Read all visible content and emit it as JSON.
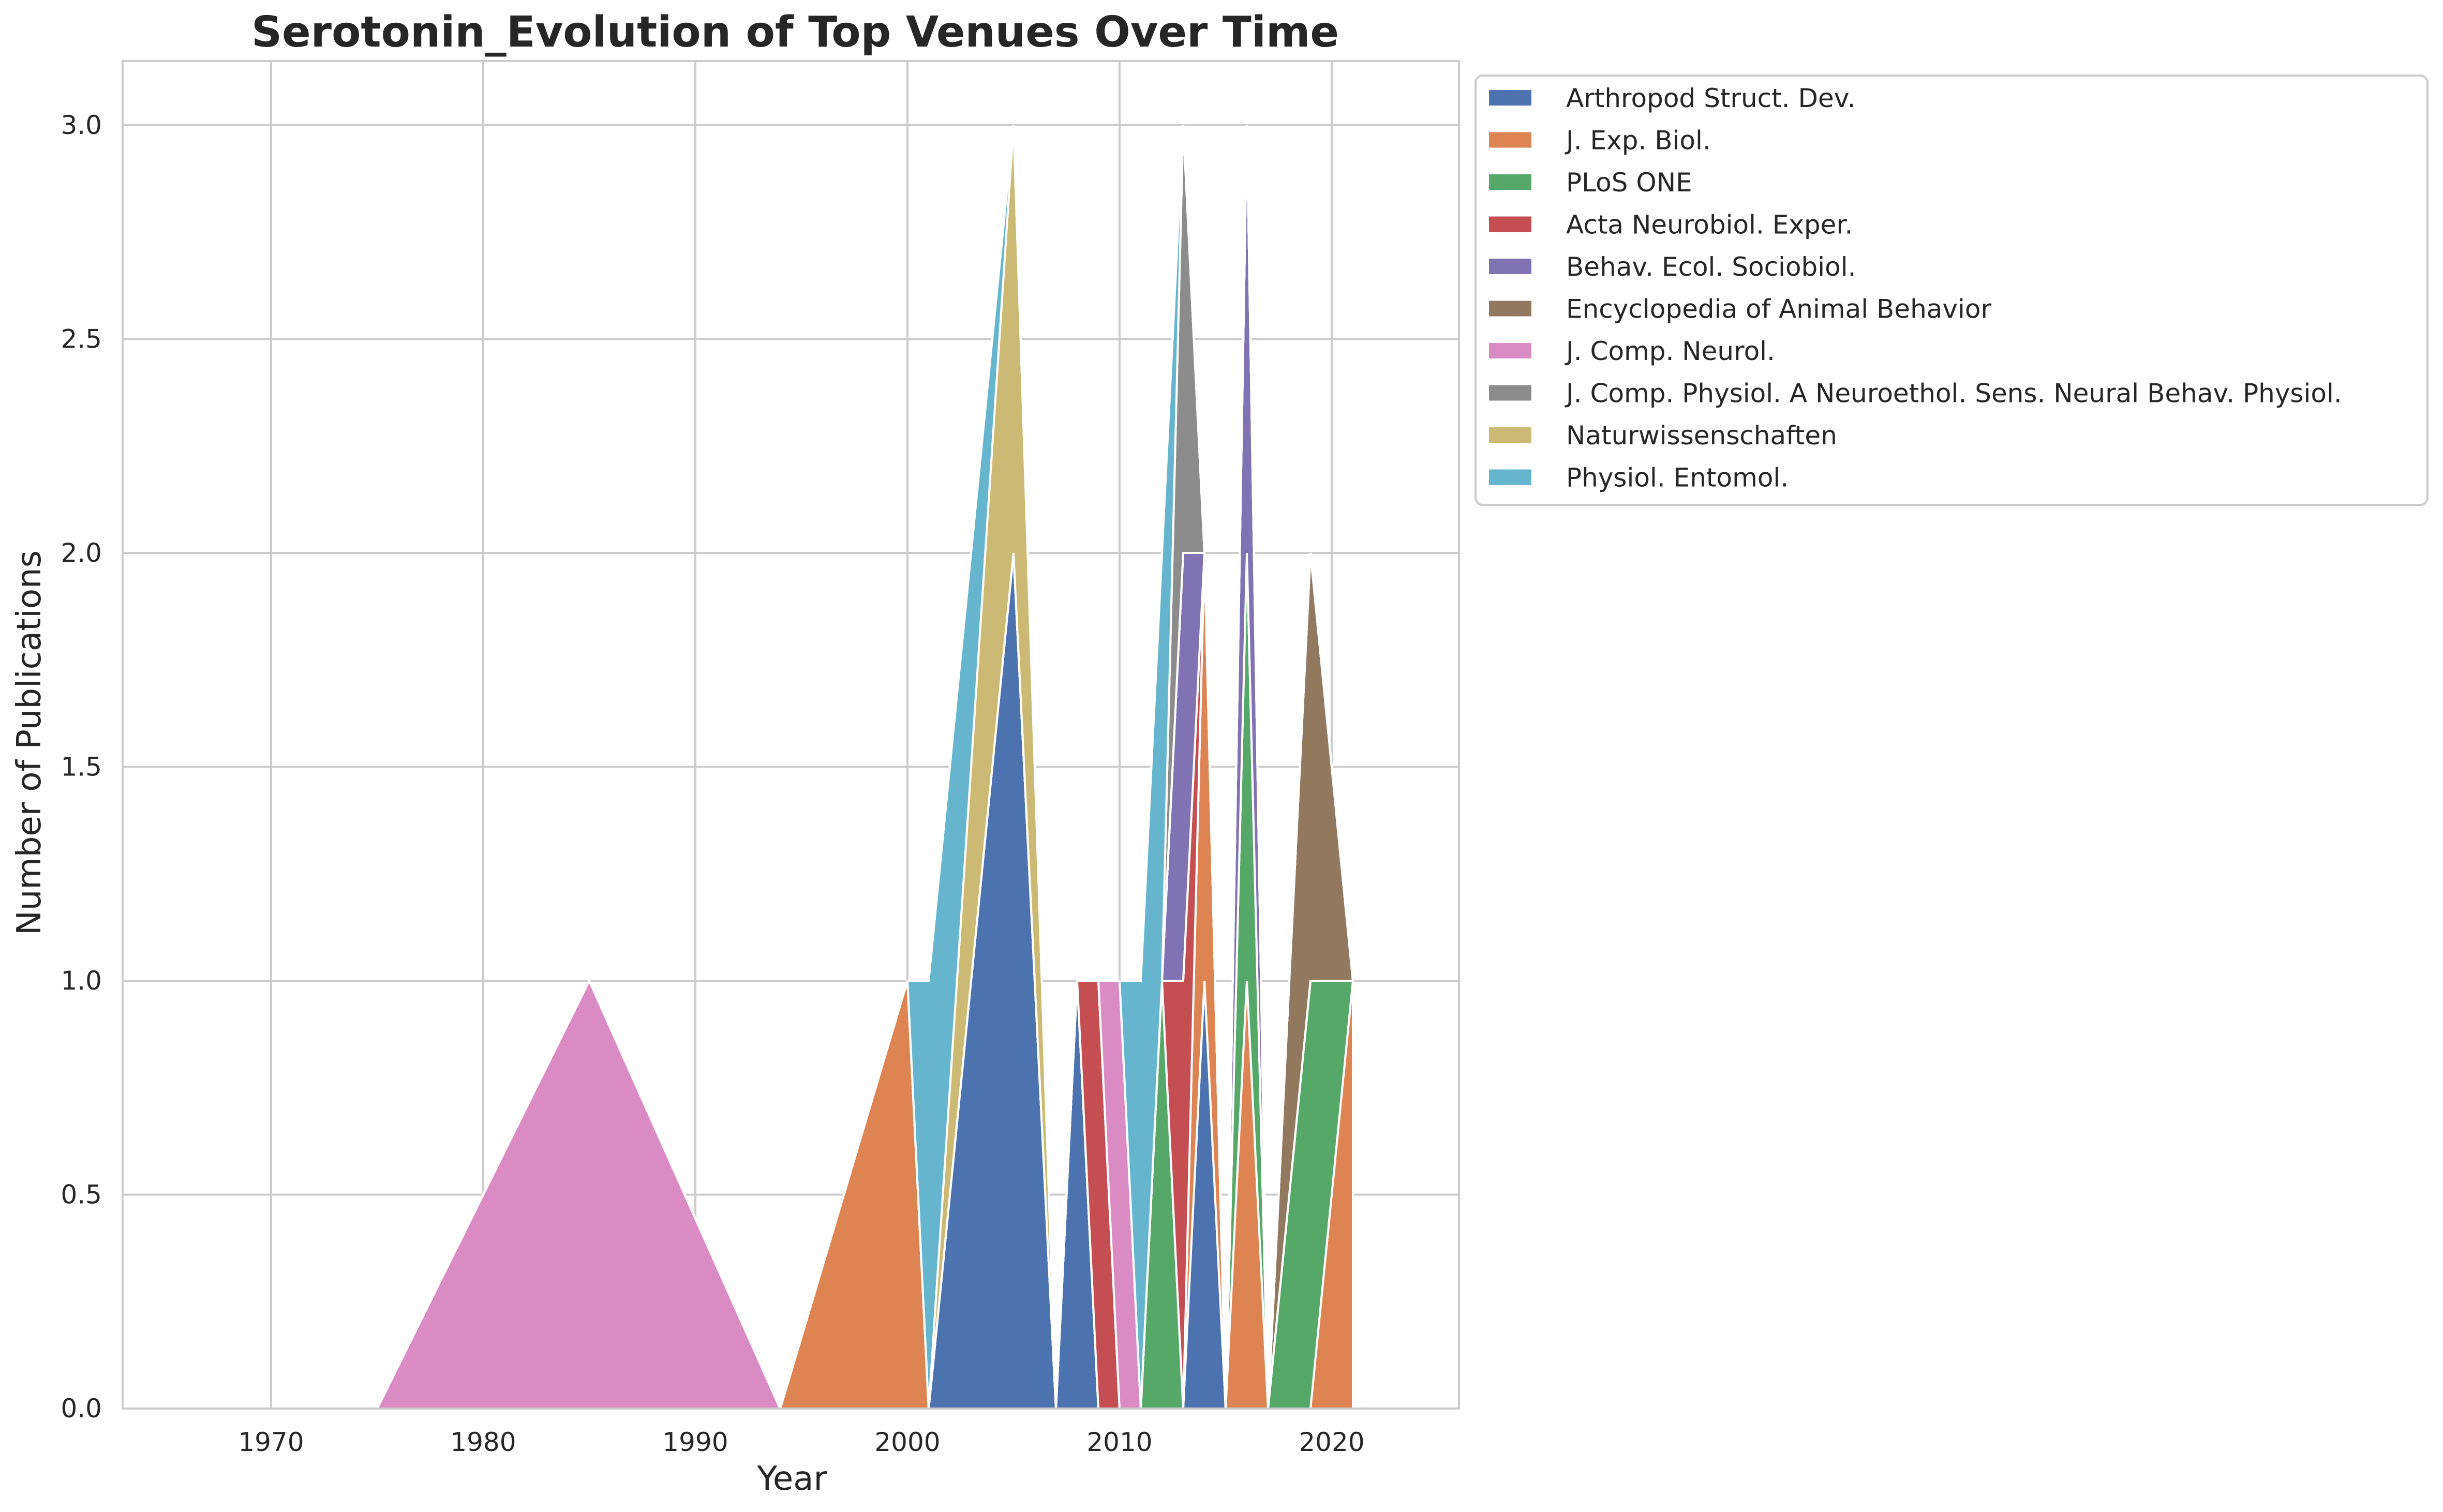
{
  "chart_data": {
    "type": "area",
    "stacked": true,
    "title": "Serotonin_Evolution of Top Venues Over Time",
    "xlabel": "Year",
    "ylabel": "Number of Publications",
    "xlim": [
      1963,
      2026
    ],
    "ylim": [
      0,
      3.15
    ],
    "x_ticks": [
      1970,
      1980,
      1990,
      2000,
      2010,
      2020
    ],
    "y_ticks": [
      0.0,
      0.5,
      1.0,
      1.5,
      2.0,
      2.5,
      3.0
    ],
    "x_tick_labels": [
      "1970",
      "1980",
      "1990",
      "2000",
      "2010",
      "2020"
    ],
    "y_tick_labels": [
      "0.0",
      "0.5",
      "1.0",
      "1.5",
      "2.0",
      "2.5",
      "3.0"
    ],
    "grid": true,
    "legend_position": "outside upper right",
    "x": [
      1975,
      1985,
      1994,
      2000,
      2001,
      2005,
      2007,
      2008,
      2009,
      2010,
      2011,
      2012,
      2013,
      2014,
      2015,
      2016,
      2017,
      2019,
      2021
    ],
    "series": [
      {
        "name": "Arthropod Struct. Dev.",
        "color": "#4c72b0",
        "values": [
          0,
          0,
          0,
          0,
          0,
          2,
          0,
          1,
          0,
          0,
          0,
          0,
          0,
          1,
          0,
          0,
          0,
          0,
          0
        ]
      },
      {
        "name": "J. Exp. Biol.",
        "color": "#dd8452",
        "values": [
          0,
          0,
          0,
          1,
          0,
          0,
          0,
          0,
          0,
          0,
          0,
          0,
          0,
          1,
          0,
          1,
          0,
          0,
          1
        ]
      },
      {
        "name": "PLoS ONE",
        "color": "#55a868",
        "values": [
          0,
          0,
          0,
          0,
          0,
          0,
          0,
          0,
          0,
          0,
          0,
          1,
          0,
          0,
          0,
          1,
          0,
          1,
          0
        ]
      },
      {
        "name": "Acta Neurobiol. Exper.",
        "color": "#c44e52",
        "values": [
          0,
          0,
          0,
          0,
          0,
          0,
          0,
          0,
          1,
          0,
          0,
          0,
          1,
          0,
          0,
          0,
          0,
          0,
          0
        ]
      },
      {
        "name": "Behav. Ecol. Sociobiol.",
        "color": "#8172b3",
        "values": [
          0,
          0,
          0,
          0,
          0,
          0,
          0,
          0,
          0,
          0,
          0,
          0,
          1,
          0,
          0,
          1,
          0,
          0,
          0
        ]
      },
      {
        "name": "Encyclopedia of Animal Behavior",
        "color": "#937860",
        "values": [
          0,
          0,
          0,
          0,
          0,
          0,
          0,
          0,
          0,
          0,
          0,
          0,
          0,
          0,
          0,
          0,
          0,
          1,
          0
        ]
      },
      {
        "name": "J. Comp. Neurol.",
        "color": "#da8bc3",
        "values": [
          0,
          1,
          0,
          0,
          0,
          0,
          0,
          0,
          0,
          1,
          0,
          0,
          0,
          0,
          0,
          0,
          0,
          0,
          0
        ]
      },
      {
        "name": "J. Comp. Physiol. A Neuroethol. Sens. Neural Behav. Physiol.",
        "color": "#8c8c8c",
        "values": [
          0,
          0,
          0,
          0,
          0,
          0,
          0,
          0,
          0,
          0,
          0,
          0,
          1,
          0,
          0,
          0,
          0,
          0,
          0
        ]
      },
      {
        "name": "Naturwissenschaften",
        "color": "#ccb974",
        "values": [
          0,
          0,
          0,
          0,
          0,
          1,
          0,
          0,
          0,
          0,
          0,
          0,
          0,
          0,
          0,
          0,
          0,
          0,
          0
        ]
      },
      {
        "name": "Physiol. Entomol.",
        "color": "#64b5cd",
        "values": [
          0,
          0,
          0,
          0,
          1,
          0,
          0,
          0,
          0,
          0,
          1,
          1,
          0,
          0,
          0,
          0,
          0,
          0,
          0
        ]
      }
    ]
  }
}
